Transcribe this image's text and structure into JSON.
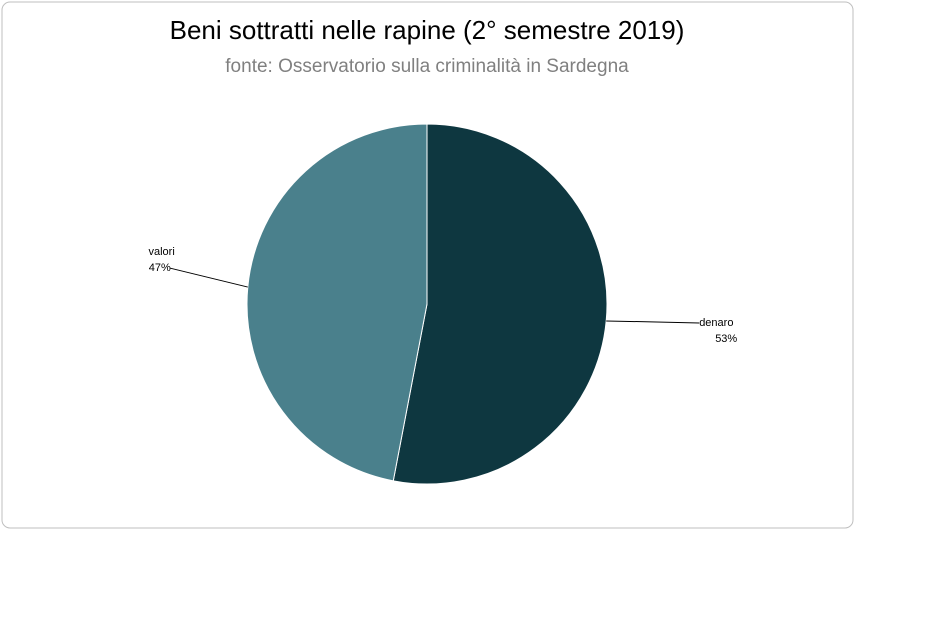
{
  "chart_data": {
    "type": "pie",
    "title": "Beni sottratti nelle rapine (2° semestre 2019)",
    "subtitle": "fonte: Osservatorio sulla criminalità in Sardegna",
    "categories": [
      "denaro",
      "valori"
    ],
    "values": [
      53,
      47
    ],
    "value_labels": [
      "53%",
      "47%"
    ],
    "colors": [
      "#0e3740",
      "#4a808c"
    ]
  }
}
